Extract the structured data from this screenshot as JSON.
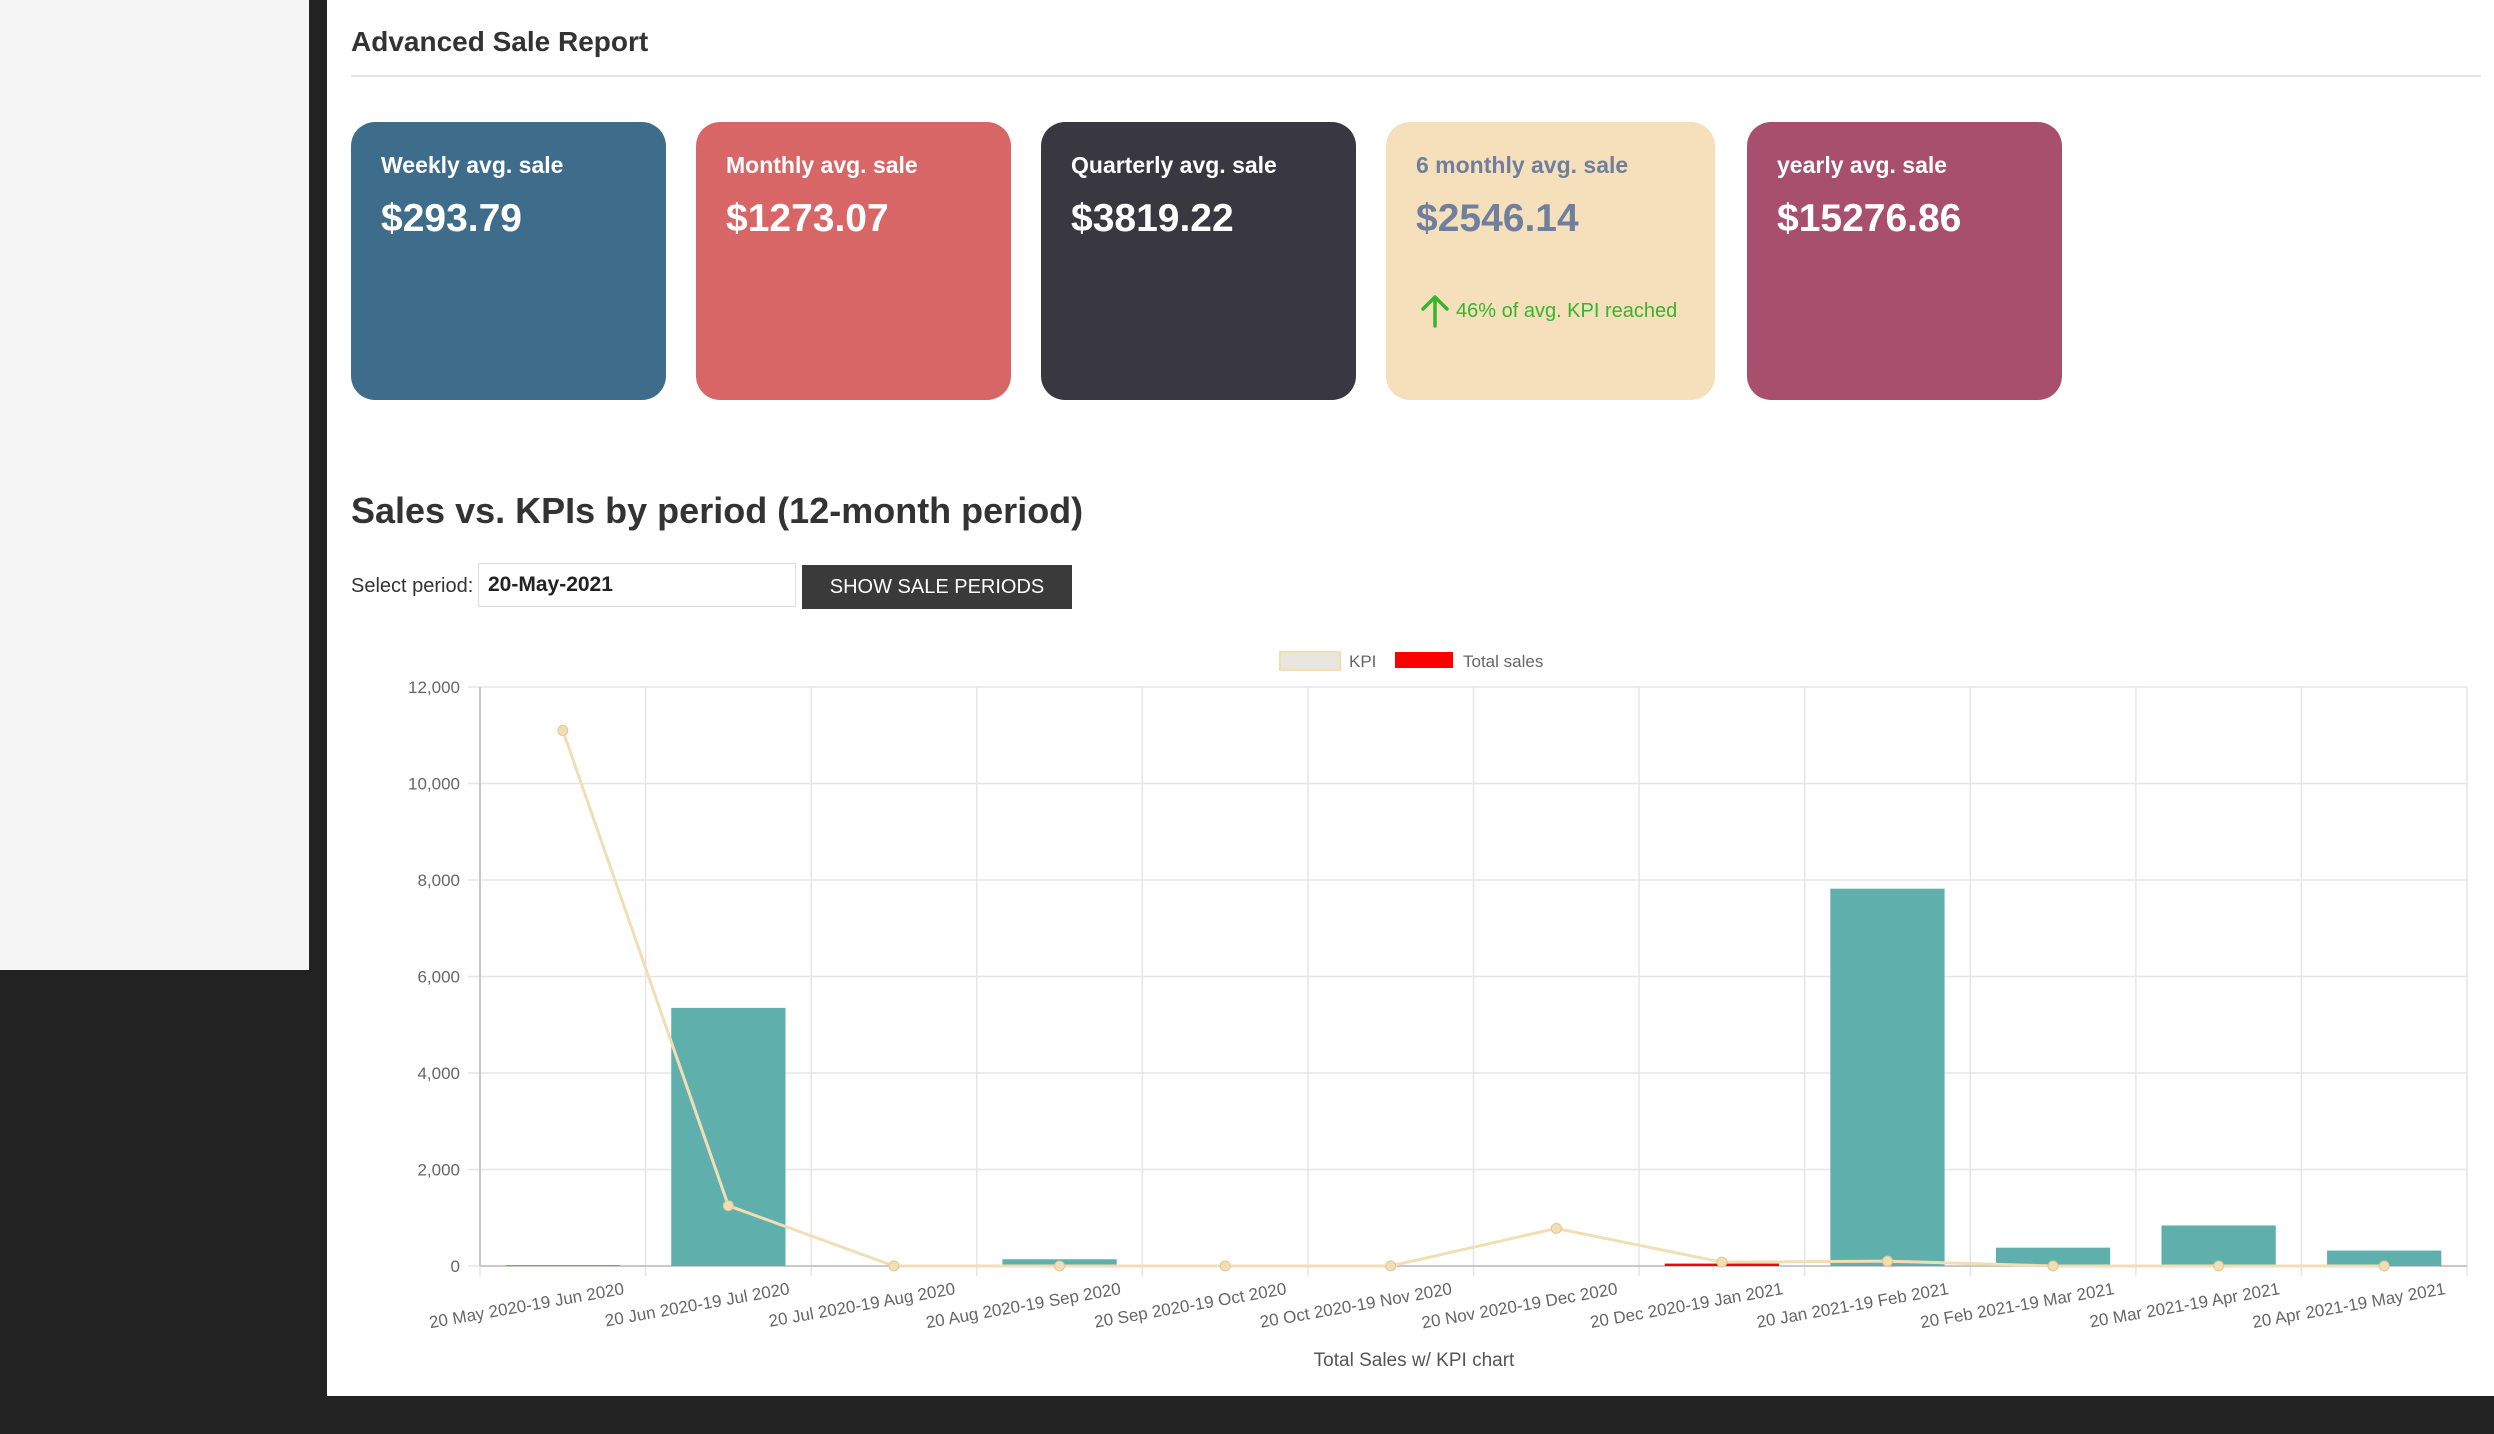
{
  "report": {
    "title": "Advanced Sale Report"
  },
  "cards": [
    {
      "label": "Weekly avg. sale",
      "value": "$293.79",
      "bg": "#3e6d8c"
    },
    {
      "label": "Monthly avg. sale",
      "value": "$1273.07",
      "bg": "#d96666"
    },
    {
      "label": "Quarterly avg. sale",
      "value": "$3819.22",
      "bg": "#393740"
    },
    {
      "label": "6 monthly avg. sale",
      "value": "$2546.14",
      "bg": "#f6e0bc",
      "text_color": "#6f7f9d",
      "kpi_note": "46% of avg. KPI reached",
      "kpi_color": "#35b52b",
      "kpi_icon": "arrow-up-icon"
    },
    {
      "label": "yearly avg. sale",
      "value": "$15276.86",
      "bg": "#a84f6e"
    }
  ],
  "section": {
    "title": "Sales vs. KPIs by period (12-month period)"
  },
  "period": {
    "label": "Select period:",
    "value": "20-May-2021",
    "button_label": "SHOW SALE PERIODS"
  },
  "chart_data": {
    "type": "bar",
    "xlabel": "Total Sales w/ KPI chart",
    "ylabel": "",
    "ylim": [
      0,
      12000
    ],
    "yticks": [
      0,
      2000,
      4000,
      6000,
      8000,
      10000,
      12000
    ],
    "ytick_labels": [
      "0",
      "2,000",
      "4,000",
      "6,000",
      "8,000",
      "10,000",
      "12,000"
    ],
    "grid": true,
    "legend_position": "top-center",
    "categories": [
      "20 May 2020-19 Jun 2020",
      "20 Jun 2020-19 Jul 2020",
      "20 Jul 2020-19 Aug 2020",
      "20 Aug 2020-19 Sep 2020",
      "20 Sep 2020-19 Oct 2020",
      "20 Oct 2020-19 Nov 2020",
      "20 Nov 2020-19 Dec 2020",
      "20 Dec 2020-19 Jan 2021",
      "20 Jan 2021-19 Feb 2021",
      "20 Feb 2021-19 Mar 2021",
      "20 Mar 2021-19 Apr 2021",
      "20 Apr 2021-19 May 2021"
    ],
    "series": [
      {
        "name": "KPI",
        "type": "line",
        "color": "#f2deb5",
        "values": [
          11100,
          1250,
          0,
          0,
          0,
          0,
          780,
          80,
          100,
          0,
          0,
          0
        ]
      },
      {
        "name": "Total sales",
        "type": "bar",
        "legend_color": "#ff0000",
        "colors": [
          "#ff0000",
          "#5fafad",
          "#5fafad",
          "#5fafad",
          "#5fafad",
          "#5fafad",
          "#5fafad",
          "#ff0000",
          "#5fafad",
          "#5fafad",
          "#5fafad",
          "#5fafad"
        ],
        "values": [
          10,
          5350,
          0,
          140,
          0,
          0,
          0,
          50,
          7820,
          380,
          840,
          320
        ]
      }
    ]
  }
}
